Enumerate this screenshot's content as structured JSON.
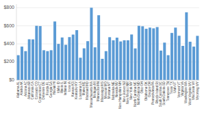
{
  "chart_data": {
    "type": "bar",
    "categories": [
      "Alabama AL",
      "Alaska AK",
      "Arizona AZ",
      "Arkansas AR",
      "California CA",
      "Colorado CO",
      "Connecticut CT",
      "Delaware DE",
      "Florida FL",
      "Georgia GA",
      "Hawaii HI",
      "Idaho ID",
      "Illinois IL",
      "Indiana IN",
      "Iowa IA",
      "Kansas KS",
      "Kentucky KY",
      "Louisiana LA",
      "Maine ME",
      "Maryland MD",
      "Massachusetts MA",
      "Michigan MI",
      "Minnesota MN",
      "Mississippi MS",
      "Missouri MO",
      "Montana MT",
      "Nebraska NE",
      "Nevada NV",
      "New Hampshire NH",
      "New Jersey NJ",
      "New Mexico NM",
      "New York NY",
      "North Carolina NC",
      "North Dakota ND",
      "Ohio OH",
      "Oklahoma OK",
      "Oregon OR",
      "Pennsylvania PA",
      "Rhode Island RI",
      "South Carolina SC",
      "South Dakota SD",
      "Tennessee TN",
      "Texas TX",
      "Utah UT",
      "Vermont VT",
      "Virginia VA",
      "Washington WA",
      "West Virginia WV",
      "Wisconsin WI",
      "Wyoming WY"
    ],
    "values": [
      275,
      370,
      320,
      451,
      450,
      600,
      597,
      330,
      320,
      330,
      648,
      400,
      471,
      390,
      475,
      503,
      552,
      247,
      351,
      430,
      800,
      362,
      717,
      235,
      320,
      474,
      440,
      469,
      427,
      440,
      440,
      504,
      350,
      600,
      595,
      567,
      580,
      572,
      586,
      326,
      414,
      275,
      521,
      580,
      490,
      378,
      749,
      424,
      370,
      489
    ],
    "color": "#5b9bd5",
    "ylim": [
      0,
      840
    ],
    "yticks": [
      {
        "value": 0,
        "label": "$0"
      },
      {
        "value": 200,
        "label": "$200"
      },
      {
        "value": 400,
        "label": "$400"
      },
      {
        "value": 600,
        "label": "$600"
      },
      {
        "value": 800,
        "label": "$800"
      }
    ],
    "grid": true
  }
}
